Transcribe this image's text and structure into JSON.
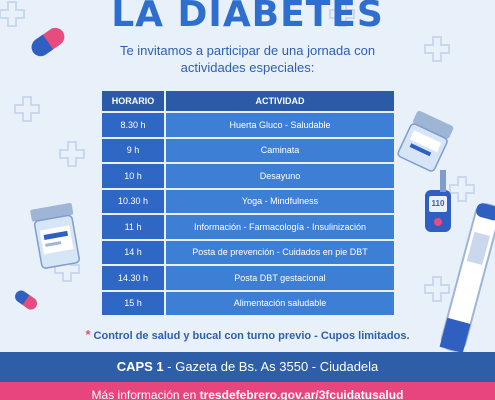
{
  "header": {
    "title": "LA DIABETES",
    "intro_line1": "Te invitamos a participar de una jornada con",
    "intro_line2": "actividades especiales:"
  },
  "schedule": {
    "headers": [
      "HORARIO",
      "ACTIVIDAD"
    ],
    "rows": [
      {
        "time": "8.30 h",
        "activity": "Huerta Gluco - Saludable"
      },
      {
        "time": "9 h",
        "activity": "Caminata"
      },
      {
        "time": "10 h",
        "activity": "Desayuno"
      },
      {
        "time": "10.30 h",
        "activity": "Yoga - Mindfulness"
      },
      {
        "time": "11 h",
        "activity": "Información - Farmacología - Insulinización"
      },
      {
        "time": "14 h",
        "activity": "Posta de prevención - Cuidados en pie DBT"
      },
      {
        "time": "14.30 h",
        "activity": "Posta DBT gestacional"
      },
      {
        "time": "15 h",
        "activity": "Alimentación saludable"
      }
    ]
  },
  "note": {
    "star": "*",
    "text": "Control de salud y bucal con turno previo - Cupos limitados."
  },
  "footer": {
    "location_name": "CAPS 1",
    "location_address": " - Gazeta de Bs. As 3550 - Ciudadela",
    "more_info_prefix": "Más información en ",
    "more_info_url": "tresdefebrero.gov.ar/3fcuidatusalud"
  },
  "decor": {
    "glucometer_reading": "110"
  },
  "colors": {
    "title_blue": "#2e6fce",
    "header_blue": "#2a5aa8",
    "row_blue": "#3e7fd6",
    "footer_blue": "#2f5ea8",
    "footer_pink": "#e6457e",
    "accent_pink": "#e84c7f",
    "background": "#e8f0f9"
  }
}
